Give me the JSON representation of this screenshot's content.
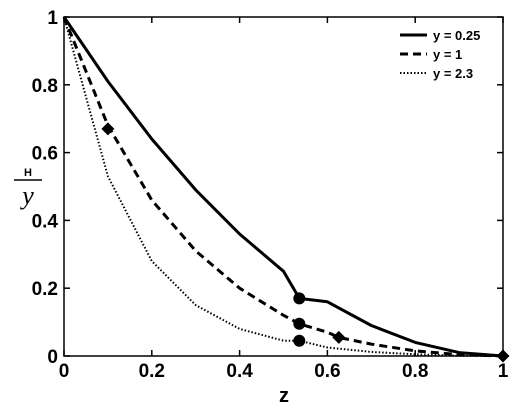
{
  "chart_data": {
    "type": "line",
    "title": "",
    "xlabel": "z",
    "ylabel_top": "H",
    "ylabel_bottom": "y",
    "xlim": [
      0,
      1
    ],
    "ylim": [
      0,
      1
    ],
    "xticks": [
      "0",
      "0.2",
      "0.4",
      "0.6",
      "0.8",
      "1"
    ],
    "yticks": [
      "0",
      "0.2",
      "0.4",
      "0.6",
      "0.8",
      "1"
    ],
    "grid": false,
    "legend_position": "top-right",
    "series": [
      {
        "name": "y = 0.25",
        "style": "solid",
        "x": [
          0,
          0.1,
          0.2,
          0.3,
          0.4,
          0.5,
          0.536,
          0.6,
          0.7,
          0.8,
          0.9,
          1.0
        ],
        "y": [
          1.0,
          0.81,
          0.64,
          0.49,
          0.36,
          0.25,
          0.17,
          0.16,
          0.09,
          0.04,
          0.01,
          0.0
        ]
      },
      {
        "name": "y = 1",
        "style": "dashed",
        "x": [
          0,
          0.1,
          0.2,
          0.3,
          0.4,
          0.5,
          0.536,
          0.6,
          0.626,
          0.7,
          0.8,
          0.9,
          1.0
        ],
        "y": [
          1.0,
          0.68,
          0.46,
          0.31,
          0.2,
          0.12,
          0.095,
          0.07,
          0.055,
          0.035,
          0.015,
          0.004,
          0.0
        ]
      },
      {
        "name": "y = 2.3",
        "style": "dotted",
        "x": [
          0,
          0.1,
          0.2,
          0.3,
          0.4,
          0.5,
          0.536,
          0.6,
          0.7,
          0.8,
          0.9,
          1.0
        ],
        "y": [
          1.0,
          0.53,
          0.28,
          0.15,
          0.08,
          0.045,
          0.045,
          0.025,
          0.012,
          0.005,
          0.001,
          0.0
        ]
      }
    ],
    "markers": [
      {
        "shape": "circle",
        "x": 0.536,
        "y": 0.17
      },
      {
        "shape": "circle",
        "x": 0.536,
        "y": 0.095
      },
      {
        "shape": "circle",
        "x": 0.536,
        "y": 0.045
      },
      {
        "shape": "diamond",
        "x": 0.1,
        "y": 0.67
      },
      {
        "shape": "diamond",
        "x": 0.626,
        "y": 0.055
      },
      {
        "shape": "diamond",
        "x": 1.0,
        "y": 0.0
      }
    ]
  }
}
